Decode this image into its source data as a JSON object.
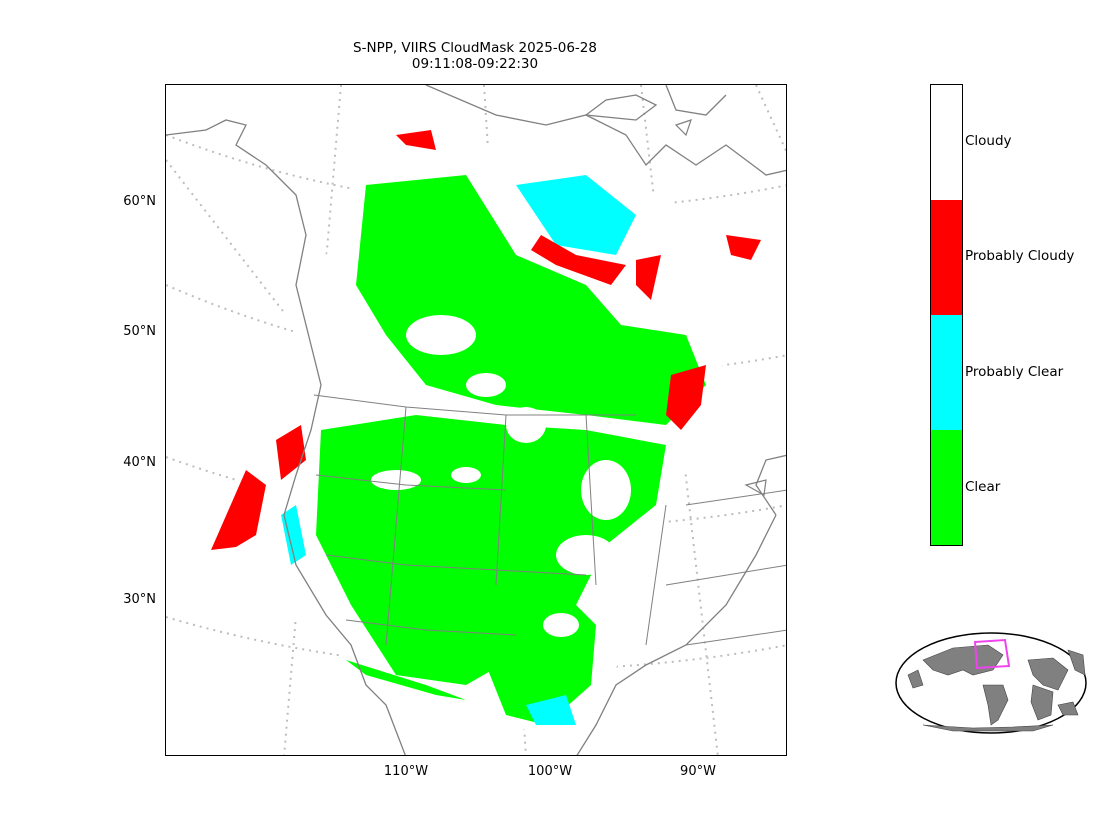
{
  "title": {
    "line1": "S-NPP, VIIRS CloudMask 2025-06-28",
    "line2": "09:11:08-09:22:30"
  },
  "map": {
    "lat_labels": [
      "60°N",
      "50°N",
      "40°N",
      "30°N"
    ],
    "lon_labels": [
      "110°W",
      "100°W",
      "90°W"
    ],
    "colors": {
      "clear": "#00ff00",
      "probably_clear": "#00ffff",
      "probably_cloudy": "#ff0000",
      "cloudy": "#ffffff",
      "coastline": "#808080",
      "gridline": "#bdbdbd"
    }
  },
  "legend": {
    "items": [
      {
        "label": "Cloudy",
        "color": "#ffffff"
      },
      {
        "label": "Probably Cloudy",
        "color": "#ff0000"
      },
      {
        "label": "Probably Clear",
        "color": "#00ffff"
      },
      {
        "label": "Clear",
        "color": "#00ff00"
      }
    ]
  },
  "inset": {
    "land_color": "#808080",
    "highlight_color": "#ee44ee"
  }
}
